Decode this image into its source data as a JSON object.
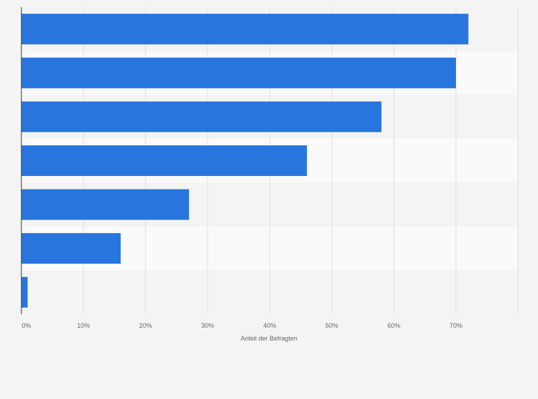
{
  "chart_data": {
    "type": "bar",
    "orientation": "horizontal",
    "categories": [
      "",
      "",
      "",
      "",
      "",
      "",
      ""
    ],
    "values": [
      72,
      70,
      58,
      46,
      27,
      16,
      1
    ],
    "unit": "%",
    "xlabel": "Anteil der Befragten",
    "ylabel": "",
    "xlim": [
      0,
      80
    ],
    "xticks": [
      "0%",
      "10%",
      "20%",
      "30%",
      "40%",
      "50%",
      "60%",
      "70%"
    ],
    "grid": true,
    "legend": "none",
    "bar_color": "#2876dd"
  }
}
